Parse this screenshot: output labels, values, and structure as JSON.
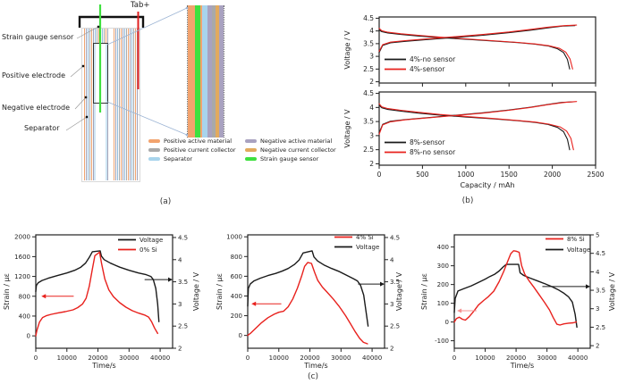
{
  "figure": {
    "captions": {
      "a": "(a)",
      "b": "(b)",
      "c": "(c)"
    }
  },
  "panel_a": {
    "tab_label": "Tab+",
    "part_labels": [
      "Strain gauge sensor",
      "Positive electrode",
      "Negative electrode",
      "Separator"
    ],
    "legend": [
      {
        "label": "Positive active material",
        "color": "#f2a36e"
      },
      {
        "label": "Positive current collector",
        "color": "#a9a9a9"
      },
      {
        "label": "Separator",
        "color": "#a8d4ec"
      },
      {
        "label": "Negative active material",
        "color": "#a9a2c0"
      },
      {
        "label": "Negative current collector",
        "color": "#e2aa5e"
      },
      {
        "label": "Strain gauge sensor",
        "color": "#3fe03f"
      }
    ],
    "colors": {
      "tab_line": "#e02020",
      "sensor_line": "#3fe03f",
      "connector": "#9cb4d4",
      "leader": "#999999",
      "bracket": "#111111"
    },
    "stripe_cycle": [
      "#f0a470",
      "#fdfdfd",
      "#a3a3b8",
      "#fdfdfd",
      "#94bede",
      "#fdfdfd",
      "#ababab",
      "#fdfdfd"
    ],
    "enlarged_stripes": [
      {
        "color": "#f2a36e",
        "w": 8
      },
      {
        "color": "#3fe03f",
        "w": 6
      },
      {
        "color": "#f2a36e",
        "w": 2
      },
      {
        "color": "#a8d4ec",
        "w": 6
      },
      {
        "color": "#a9a2c0",
        "w": 5
      },
      {
        "color": "#a9a9a9",
        "w": 4
      },
      {
        "color": "#e2aa5e",
        "w": 4
      },
      {
        "color": "#a9a2c0",
        "w": 5
      }
    ]
  },
  "chart_data": [
    {
      "id": "b_top",
      "type": "line",
      "x": {
        "label": "",
        "range": [
          0,
          2500
        ],
        "ticks": [
          0,
          500,
          1000,
          1500,
          2000,
          2500
        ],
        "show_tick_labels": false
      },
      "y_left": {
        "label": "Voltage / V",
        "range": [
          1.95,
          4.55
        ],
        "ticks": [
          2,
          2.5,
          3,
          3.5,
          4,
          4.5
        ]
      },
      "legend": [
        {
          "label": "4%-no sensor",
          "color": "#1a1a1a"
        },
        {
          "label": "4%-sensor",
          "color": "#e8211d"
        }
      ],
      "series": [
        {
          "name": "4%-no sensor discharge",
          "color": "#1a1a1a",
          "axis": "left",
          "x": [
            0,
            30,
            100,
            250,
            450,
            700,
            1000,
            1300,
            1600,
            1800,
            1950,
            2060,
            2130,
            2175,
            2200
          ],
          "y": [
            4.04,
            3.97,
            3.92,
            3.86,
            3.8,
            3.74,
            3.67,
            3.61,
            3.54,
            3.48,
            3.41,
            3.3,
            3.15,
            2.88,
            2.5
          ]
        },
        {
          "name": "4%-sensor discharge",
          "color": "#e8211d",
          "axis": "left",
          "x": [
            0,
            30,
            100,
            250,
            450,
            700,
            1000,
            1300,
            1600,
            1800,
            1960,
            2080,
            2155,
            2205,
            2235
          ],
          "y": [
            4.1,
            4.01,
            3.95,
            3.89,
            3.83,
            3.76,
            3.69,
            3.62,
            3.55,
            3.49,
            3.42,
            3.32,
            3.17,
            2.9,
            2.5
          ]
        },
        {
          "name": "4%-no sensor charge",
          "color": "#1a1a1a",
          "axis": "left",
          "x": [
            0,
            40,
            130,
            300,
            600,
            900,
            1200,
            1500,
            1750,
            1950,
            2120,
            2260
          ],
          "y": [
            3.15,
            3.43,
            3.53,
            3.59,
            3.67,
            3.75,
            3.83,
            3.93,
            4.03,
            4.12,
            4.19,
            4.21
          ]
        },
        {
          "name": "4%-sensor charge",
          "color": "#e8211d",
          "axis": "left",
          "x": [
            0,
            40,
            130,
            300,
            600,
            900,
            1200,
            1500,
            1750,
            1950,
            2140,
            2280
          ],
          "y": [
            3.2,
            3.46,
            3.56,
            3.62,
            3.7,
            3.78,
            3.86,
            3.96,
            4.06,
            4.15,
            4.21,
            4.23
          ]
        }
      ],
      "arrows": []
    },
    {
      "id": "b_bottom",
      "type": "line",
      "x": {
        "label": "Capacity / mAh",
        "range": [
          0,
          2500
        ],
        "ticks": [
          0,
          500,
          1000,
          1500,
          2000,
          2500
        ],
        "show_tick_labels": true
      },
      "y_left": {
        "label": "Voltage / V",
        "range": [
          1.95,
          4.55
        ],
        "ticks": [
          2,
          2.5,
          3,
          3.5,
          4,
          4.5
        ]
      },
      "legend": [
        {
          "label": "8%-sensor",
          "color": "#1a1a1a"
        },
        {
          "label": "8%-no sensor",
          "color": "#e8211d"
        }
      ],
      "series": [
        {
          "name": "8%-sensor discharge",
          "color": "#1a1a1a",
          "axis": "left",
          "x": [
            0,
            30,
            100,
            250,
            450,
            700,
            1000,
            1300,
            1600,
            1800,
            1950,
            2060,
            2130,
            2175,
            2200
          ],
          "y": [
            4.08,
            3.99,
            3.93,
            3.87,
            3.8,
            3.73,
            3.66,
            3.6,
            3.53,
            3.47,
            3.4,
            3.29,
            3.14,
            2.87,
            2.5
          ]
        },
        {
          "name": "8%-no sensor discharge",
          "color": "#e8211d",
          "axis": "left",
          "x": [
            0,
            30,
            100,
            250,
            450,
            700,
            1000,
            1300,
            1600,
            1800,
            1960,
            2090,
            2165,
            2215,
            2245
          ],
          "y": [
            4.13,
            4.02,
            3.96,
            3.9,
            3.83,
            3.75,
            3.68,
            3.61,
            3.54,
            3.48,
            3.41,
            3.31,
            3.16,
            2.9,
            2.5
          ]
        },
        {
          "name": "8%-sensor charge",
          "color": "#1a1a1a",
          "axis": "left",
          "x": [
            0,
            40,
            130,
            300,
            600,
            900,
            1200,
            1500,
            1750,
            1950,
            2110,
            2250
          ],
          "y": [
            3.1,
            3.4,
            3.51,
            3.57,
            3.65,
            3.73,
            3.81,
            3.91,
            4.01,
            4.11,
            4.18,
            4.2
          ]
        },
        {
          "name": "8%-no sensor charge",
          "color": "#e8211d",
          "axis": "left",
          "x": [
            0,
            40,
            130,
            300,
            600,
            900,
            1200,
            1500,
            1750,
            1950,
            2140,
            2280
          ],
          "y": [
            3.05,
            3.38,
            3.49,
            3.56,
            3.64,
            3.72,
            3.8,
            3.9,
            4.0,
            4.1,
            4.18,
            4.21
          ]
        }
      ],
      "arrows": []
    },
    {
      "id": "c1",
      "type": "line",
      "x": {
        "label": "Time/s",
        "range": [
          0,
          44000
        ],
        "ticks": [
          0,
          10000,
          20000,
          30000,
          40000
        ],
        "show_tick_labels": true
      },
      "y_left": {
        "label": "Strain / με",
        "range": [
          -250,
          2040
        ],
        "ticks": [
          0,
          400,
          800,
          1200,
          1600,
          2000
        ]
      },
      "y_right": {
        "label": "Voltage / V",
        "range": [
          2,
          4.56
        ],
        "ticks": [
          2,
          2.5,
          3,
          3.5,
          4,
          4.5
        ]
      },
      "legend": [
        {
          "label": "Voltage",
          "color": "#1a1a1a"
        },
        {
          "label": "0% Si",
          "color": "#e8211d"
        }
      ],
      "series": [
        {
          "name": "Voltage",
          "color": "#1a1a1a",
          "axis": "right",
          "x": [
            0,
            200,
            800,
            2000,
            4000,
            7000,
            10000,
            12500,
            14500,
            16000,
            17200,
            18200,
            20700,
            21100,
            22000,
            24000,
            27000,
            30000,
            33000,
            35500,
            37000,
            37800,
            38600,
            39200,
            39600
          ],
          "y": [
            3.28,
            3.42,
            3.48,
            3.53,
            3.58,
            3.64,
            3.7,
            3.76,
            3.83,
            3.92,
            4.05,
            4.18,
            4.2,
            4.08,
            4.0,
            3.92,
            3.83,
            3.76,
            3.7,
            3.66,
            3.62,
            3.55,
            3.35,
            3.0,
            2.6
          ]
        },
        {
          "name": "0% Si strain",
          "color": "#e8211d",
          "axis": "left",
          "x": [
            0,
            400,
            1200,
            2200,
            3500,
            5000,
            7000,
            9500,
            12000,
            13500,
            15000,
            16200,
            17200,
            18200,
            19000,
            20500,
            21200,
            22200,
            23500,
            25000,
            27000,
            29000,
            31000,
            33000,
            35000,
            36300,
            37200,
            38200,
            39200
          ],
          "y": [
            0,
            120,
            280,
            370,
            410,
            435,
            460,
            490,
            525,
            570,
            640,
            760,
            1000,
            1350,
            1620,
            1690,
            1450,
            1150,
            930,
            790,
            670,
            580,
            510,
            460,
            420,
            380,
            290,
            160,
            50
          ]
        }
      ],
      "arrows": [
        {
          "axis": "left",
          "y": 800,
          "x1": 12200,
          "x2": 1800,
          "color": "#e8211d"
        },
        {
          "axis": "right",
          "y": 3.55,
          "x1": 35000,
          "x2": 44000,
          "color": "#1a1a1a"
        }
      ]
    },
    {
      "id": "c2",
      "type": "line",
      "x": {
        "label": "Time/s",
        "range": [
          0,
          44000
        ],
        "ticks": [
          0,
          10000,
          20000,
          30000,
          40000
        ],
        "show_tick_labels": true
      },
      "y_left": {
        "label": "Strain / με",
        "range": [
          -130,
          1020
        ],
        "ticks": [
          0,
          200,
          400,
          600,
          800,
          1000
        ]
      },
      "y_right": {
        "label": "Voltage / V",
        "range": [
          2,
          4.56
        ],
        "ticks": [
          2,
          2.5,
          3,
          3.5,
          4,
          4.5
        ]
      },
      "legend": [
        {
          "label": "4% Si",
          "color": "#e8211d"
        },
        {
          "label": "Voltage",
          "color": "#1a1a1a"
        }
      ],
      "series": [
        {
          "name": "Voltage",
          "color": "#1a1a1a",
          "axis": "right",
          "x": [
            0,
            200,
            800,
            2000,
            4000,
            6500,
            9000,
            11000,
            13000,
            15000,
            16500,
            17800,
            20700,
            21300,
            22500,
            24500,
            27000,
            29500,
            32000,
            34000,
            35300,
            36300,
            37300,
            38100,
            38700
          ],
          "y": [
            2.95,
            3.35,
            3.45,
            3.52,
            3.58,
            3.64,
            3.69,
            3.74,
            3.8,
            3.89,
            3.99,
            4.15,
            4.2,
            4.06,
            3.97,
            3.88,
            3.8,
            3.73,
            3.64,
            3.57,
            3.52,
            3.42,
            3.2,
            2.8,
            2.5
          ]
        },
        {
          "name": "4% Si strain",
          "color": "#e8211d",
          "axis": "left",
          "x": [
            0,
            1000,
            2500,
            4500,
            6500,
            8500,
            10000,
            11500,
            13000,
            14500,
            16000,
            17300,
            18300,
            19300,
            20500,
            21500,
            22500,
            24000,
            25500,
            27500,
            29500,
            31500,
            33000,
            34500,
            36000,
            37200,
            38500
          ],
          "y": [
            0,
            25,
            70,
            130,
            180,
            215,
            235,
            245,
            290,
            370,
            480,
            600,
            700,
            740,
            730,
            640,
            560,
            490,
            440,
            370,
            290,
            200,
            120,
            40,
            -30,
            -70,
            -85
          ]
        }
      ],
      "arrows": [
        {
          "axis": "left",
          "y": 320,
          "x1": 10800,
          "x2": 1200,
          "color": "#e8211d"
        },
        {
          "axis": "right",
          "y": 3.45,
          "x1": 35500,
          "x2": 44000,
          "color": "#1a1a1a"
        }
      ]
    },
    {
      "id": "c3",
      "type": "line",
      "x": {
        "label": "Time/s",
        "range": [
          0,
          44000
        ],
        "ticks": [
          0,
          10000,
          20000,
          30000,
          40000
        ],
        "show_tick_labels": true
      },
      "y_left": {
        "label": "Strain / με",
        "range": [
          -140,
          465
        ],
        "ticks": [
          -100,
          0,
          100,
          200,
          300,
          400
        ]
      },
      "y_right": {
        "label": "Voltage / V",
        "range": [
          1.93,
          5
        ],
        "ticks": [
          2,
          2.5,
          3,
          3.5,
          4,
          4.5,
          5
        ]
      },
      "legend": [
        {
          "label": "8% Si",
          "color": "#e8211d"
        },
        {
          "label": "Voltage",
          "color": "#1a1a1a"
        }
      ],
      "series": [
        {
          "name": "Voltage",
          "color": "#1a1a1a",
          "axis": "right",
          "x": [
            0,
            300,
            1200,
            3000,
            5500,
            8000,
            10000,
            11500,
            13000,
            14500,
            15800,
            16800,
            20800,
            21300,
            22500,
            24500,
            27000,
            29500,
            31500,
            33500,
            35500,
            37000,
            38200,
            39100,
            39700
          ],
          "y": [
            2.9,
            3.28,
            3.48,
            3.54,
            3.62,
            3.72,
            3.8,
            3.87,
            3.93,
            4.02,
            4.13,
            4.2,
            4.2,
            3.97,
            3.9,
            3.83,
            3.75,
            3.67,
            3.6,
            3.52,
            3.42,
            3.32,
            3.18,
            2.85,
            2.5
          ]
        },
        {
          "name": "8% Si strain",
          "color": "#e8211d",
          "axis": "left",
          "x": [
            0,
            700,
            1600,
            2600,
            3600,
            4800,
            6200,
            7800,
            9500,
            11000,
            12800,
            14500,
            16000,
            17300,
            18300,
            19200,
            20000,
            21000,
            21800,
            22800,
            24200,
            25800,
            27500,
            29200,
            30800,
            32000,
            33200,
            34200,
            35500,
            37000,
            38500,
            39500
          ],
          "y": [
            0,
            18,
            26,
            15,
            10,
            28,
            55,
            90,
            115,
            135,
            165,
            215,
            270,
            325,
            365,
            380,
            378,
            372,
            300,
            255,
            220,
            185,
            145,
            105,
            65,
            25,
            -12,
            -16,
            -10,
            -6,
            -4,
            0
          ]
        }
      ],
      "arrows": [
        {
          "axis": "left",
          "y": 60,
          "x1": 7200,
          "x2": 900,
          "color": "#f49090"
        },
        {
          "axis": "right",
          "y": 3.6,
          "x1": 28500,
          "x2": 44000,
          "color": "#1a1a1a"
        }
      ]
    }
  ]
}
